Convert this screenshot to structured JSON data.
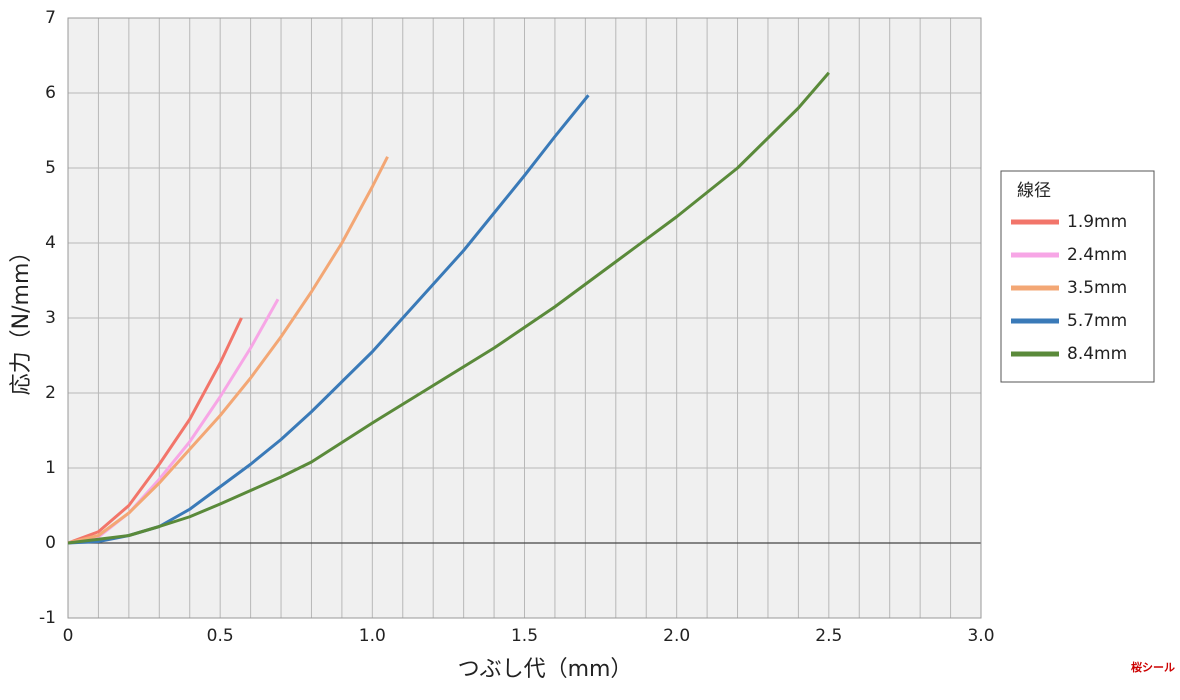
{
  "chart_data": {
    "type": "line",
    "xlabel": "つぶし代（mm）",
    "ylabel": "応力（N/mm）",
    "xlim": [
      0,
      3.0
    ],
    "ylim": [
      -1,
      7
    ],
    "xticks": [
      0,
      0.5,
      {
        "value": 1,
        "label": "1.0"
      },
      1.5,
      {
        "value": 2,
        "label": "2.0"
      },
      2.5,
      {
        "value": 3,
        "label": "3.0"
      }
    ],
    "yticks": [
      -1,
      0,
      1,
      2,
      3,
      4,
      5,
      6,
      7
    ],
    "x_minor_grid": [
      0.1,
      0.2,
      0.3,
      0.4,
      0.6,
      0.7,
      0.8,
      0.9,
      1.1,
      1.2,
      1.3,
      1.4,
      1.6,
      1.7,
      1.8,
      1.9,
      2.1,
      2.2,
      2.3,
      2.4,
      2.6,
      2.7,
      2.8,
      2.9
    ],
    "grid": true,
    "legend_title": "線径",
    "legend_position": "right",
    "logo": "桜シール",
    "series": [
      {
        "name": "1.9mm",
        "color": "#f2756a",
        "x": [
          0,
          0.1,
          0.2,
          0.3,
          0.4,
          0.5,
          0.57
        ],
        "values": [
          0,
          0.15,
          0.5,
          1.05,
          1.65,
          2.4,
          3.0
        ]
      },
      {
        "name": "2.4mm",
        "color": "#f7a6e6",
        "x": [
          0,
          0.1,
          0.2,
          0.3,
          0.4,
          0.5,
          0.6,
          0.69
        ],
        "values": [
          0,
          0.08,
          0.4,
          0.85,
          1.35,
          1.95,
          2.6,
          3.25
        ]
      },
      {
        "name": "3.5mm",
        "color": "#f3a775",
        "x": [
          0,
          0.1,
          0.2,
          0.3,
          0.4,
          0.5,
          0.6,
          0.7,
          0.8,
          0.9,
          1.0,
          1.05
        ],
        "values": [
          0,
          0.1,
          0.4,
          0.8,
          1.25,
          1.7,
          2.2,
          2.75,
          3.35,
          4.0,
          4.75,
          5.15
        ]
      },
      {
        "name": "5.7mm",
        "color": "#3a7ab8",
        "x": [
          0,
          0.1,
          0.2,
          0.3,
          0.4,
          0.5,
          0.6,
          0.7,
          0.8,
          0.9,
          1.0,
          1.1,
          1.2,
          1.3,
          1.4,
          1.5,
          1.6,
          1.71
        ],
        "values": [
          0,
          0.02,
          0.1,
          0.22,
          0.45,
          0.75,
          1.05,
          1.38,
          1.75,
          2.15,
          2.55,
          3.0,
          3.45,
          3.9,
          4.4,
          4.9,
          5.42,
          5.97
        ]
      },
      {
        "name": "8.4mm",
        "color": "#5a8a3a",
        "x": [
          0,
          0.2,
          0.3,
          0.4,
          0.5,
          0.6,
          0.7,
          0.8,
          1.0,
          1.2,
          1.4,
          1.6,
          1.8,
          2.0,
          2.2,
          2.4,
          2.5
        ],
        "values": [
          0,
          0.1,
          0.22,
          0.35,
          0.52,
          0.7,
          0.88,
          1.08,
          1.6,
          2.1,
          2.6,
          3.15,
          3.75,
          4.35,
          5.0,
          5.8,
          6.27
        ]
      }
    ]
  }
}
